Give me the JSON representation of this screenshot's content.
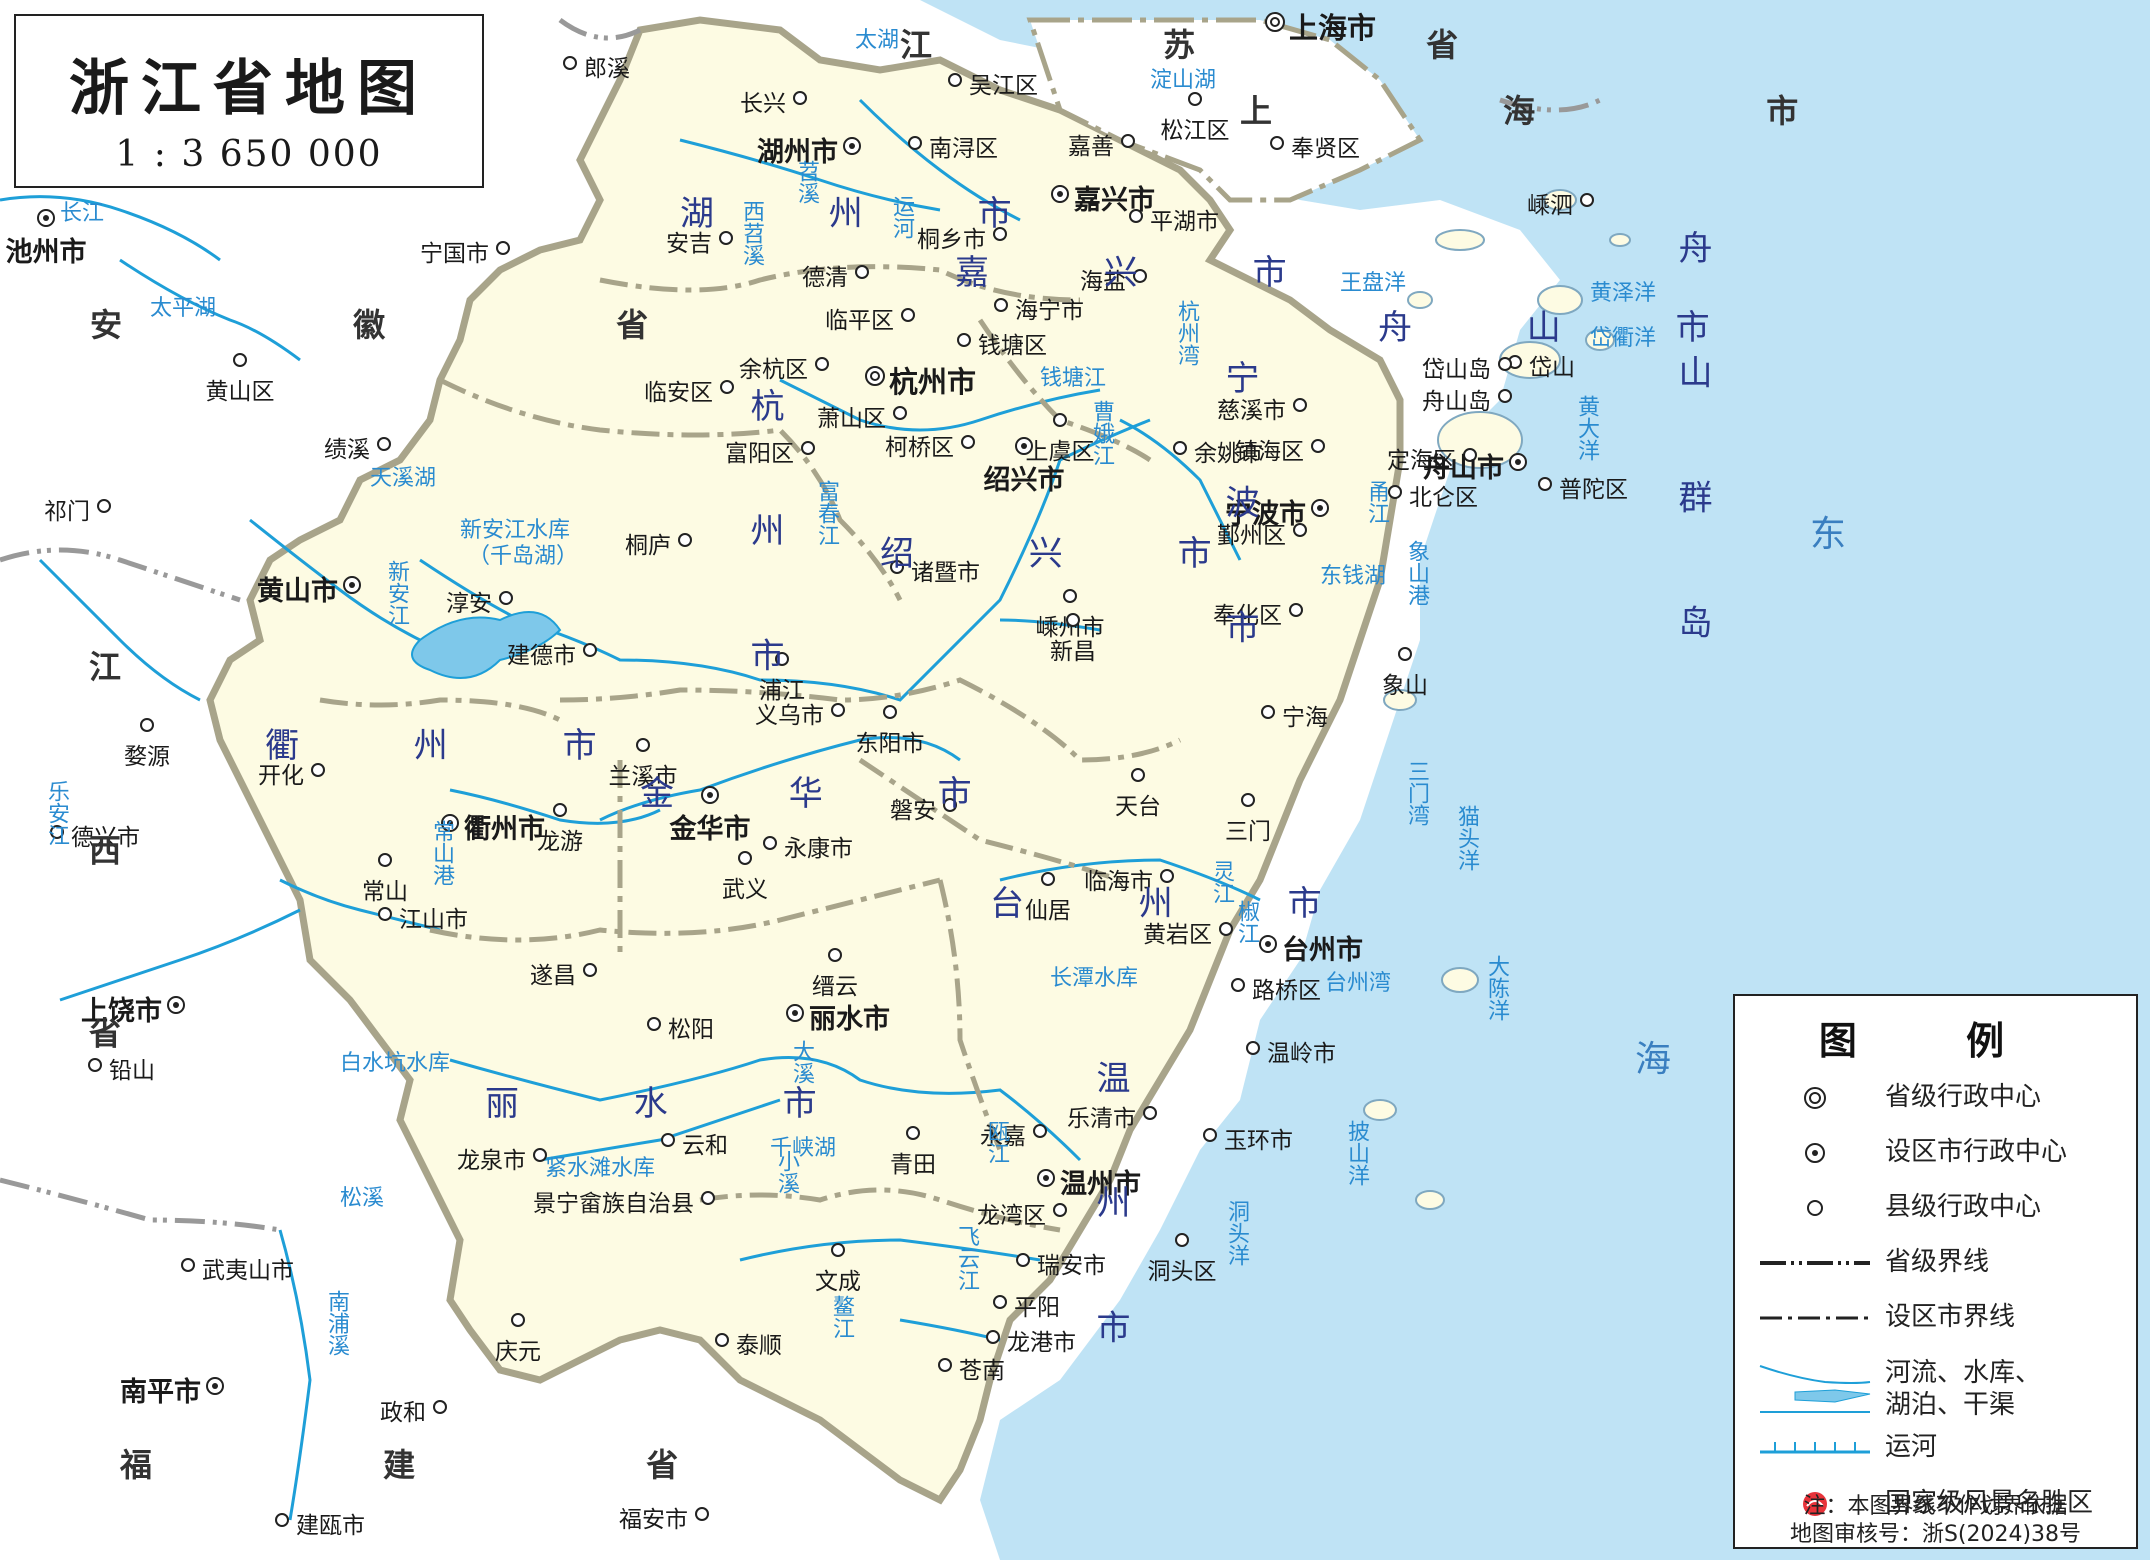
{
  "title": "浙江省地图",
  "scale": "1 : 3 650 000",
  "colors": {
    "sea": "#bfe3f5",
    "land_zj": "#fdfbe3",
    "land_other": "#ffffff",
    "river": "#1e9fd8",
    "label_blue": "#2a8bd0",
    "label_sea": "#3a7fc0",
    "region_label": "#2b3a8c",
    "boundary": "#9a9a80",
    "text": "#1a1a1a"
  },
  "sea_labels": [
    "东",
    "海"
  ],
  "province_labels": {
    "jiangsu": "江 苏 省",
    "anhui": "安 徽 省",
    "jiangxi": "江 西 省",
    "fujian": "福 建 省",
    "shanghai": "上 海 市"
  },
  "city_region_labels": {
    "huzhou": "湖 州 市",
    "jiaxing": "嘉 兴 市",
    "hangzhou": "杭 州 市",
    "shaoxing": "绍 兴 市",
    "ningbo": "宁 波 市",
    "zhoushan": "舟 山 市",
    "quzhou": "衢 州 市",
    "jinhua": "金 华 市",
    "taizhou": "台 州 市",
    "lishui": "丽 水 市",
    "wenzhou": "温 州 市",
    "zhoushan_islands": "舟 山 群 岛"
  },
  "water_labels": [
    "太湖",
    "淀山湖",
    "长江",
    "太平湖",
    "天溪湖",
    "新安江水库",
    "（千岛湖）",
    "钱塘江",
    "曹娥江",
    "杭州湾",
    "王盘洋",
    "黄泽洋",
    "岱衢洋",
    "黄大洋",
    "甬江",
    "东钱湖",
    "象山港",
    "三门湾",
    "猫头洋",
    "大陈洋",
    "台州湾",
    "灵江",
    "椒江",
    "长潭水库",
    "紧水滩水库",
    "千峡湖",
    "白水坑水库",
    "瓯江",
    "飞云江",
    "鳌江",
    "洞头洋",
    "披山洋",
    "乐安江",
    "富春江",
    "新安江",
    "常山港",
    "大溪",
    "小溪",
    "苕溪",
    "西苕溪",
    "运河",
    "松溪",
    "南浦溪"
  ],
  "places": {
    "provincial": [
      {
        "name": "上海市"
      },
      {
        "name": "杭州市"
      }
    ],
    "prefecture": [
      {
        "name": "湖州市"
      },
      {
        "name": "嘉兴市"
      },
      {
        "name": "绍兴市"
      },
      {
        "name": "宁波市"
      },
      {
        "name": "舟山市"
      },
      {
        "name": "衢州市"
      },
      {
        "name": "金华市"
      },
      {
        "name": "台州市"
      },
      {
        "name": "丽水市"
      },
      {
        "name": "温州市"
      },
      {
        "name": "池州市"
      },
      {
        "name": "黄山市"
      },
      {
        "name": "上饶市"
      },
      {
        "name": "南平市"
      }
    ],
    "county": [
      {
        "name": "郎溪"
      },
      {
        "name": "长兴"
      },
      {
        "name": "吴江区"
      },
      {
        "name": "松江区"
      },
      {
        "name": "奉贤区"
      },
      {
        "name": "南浔区"
      },
      {
        "name": "嘉善"
      },
      {
        "name": "嵊泗"
      },
      {
        "name": "宁国市"
      },
      {
        "name": "安吉"
      },
      {
        "name": "德清"
      },
      {
        "name": "桐乡市"
      },
      {
        "name": "平湖市"
      },
      {
        "name": "海盐"
      },
      {
        "name": "海宁市"
      },
      {
        "name": "临平区"
      },
      {
        "name": "钱塘区"
      },
      {
        "name": "余杭区"
      },
      {
        "name": "临安区"
      },
      {
        "name": "萧山区"
      },
      {
        "name": "岱山"
      },
      {
        "name": "岱山岛"
      },
      {
        "name": "舟山岛"
      },
      {
        "name": "黄山区"
      },
      {
        "name": "绩溪"
      },
      {
        "name": "富阳区"
      },
      {
        "name": "柯桥区"
      },
      {
        "name": "上虞区"
      },
      {
        "name": "余姚市"
      },
      {
        "name": "镇海区"
      },
      {
        "name": "慈溪市"
      },
      {
        "name": "定海区"
      },
      {
        "name": "普陀区"
      },
      {
        "name": "北仑区"
      },
      {
        "name": "祁门"
      },
      {
        "name": "鄞州区"
      },
      {
        "name": "桐庐"
      },
      {
        "name": "诸暨市"
      },
      {
        "name": "嵊州市"
      },
      {
        "name": "新昌"
      },
      {
        "name": "奉化区"
      },
      {
        "name": "淳安"
      },
      {
        "name": "建德市"
      },
      {
        "name": "象山"
      },
      {
        "name": "婺源"
      },
      {
        "name": "浦江"
      },
      {
        "name": "义乌市"
      },
      {
        "name": "兰溪市"
      },
      {
        "name": "东阳市"
      },
      {
        "name": "宁海"
      },
      {
        "name": "开化"
      },
      {
        "name": "三门"
      },
      {
        "name": "天台"
      },
      {
        "name": "磐安"
      },
      {
        "name": "德兴市"
      },
      {
        "name": "龙游"
      },
      {
        "name": "常山"
      },
      {
        "name": "永康市"
      },
      {
        "name": "武义"
      },
      {
        "name": "临海市"
      },
      {
        "name": "仙居"
      },
      {
        "name": "江山市"
      },
      {
        "name": "黄岩区"
      },
      {
        "name": "遂昌"
      },
      {
        "name": "缙云"
      },
      {
        "name": "路桥区"
      },
      {
        "name": "松阳"
      },
      {
        "name": "温岭市"
      },
      {
        "name": "铅山"
      },
      {
        "name": "青田"
      },
      {
        "name": "乐清市"
      },
      {
        "name": "龙泉市"
      },
      {
        "name": "云和"
      },
      {
        "name": "永嘉"
      },
      {
        "name": "玉环市"
      },
      {
        "name": "景宁畲族自治县"
      },
      {
        "name": "龙湾区"
      },
      {
        "name": "文成"
      },
      {
        "name": "瑞安市"
      },
      {
        "name": "洞头区"
      },
      {
        "name": "武夷山市"
      },
      {
        "name": "庆元"
      },
      {
        "name": "平阳"
      },
      {
        "name": "泰顺"
      },
      {
        "name": "龙港市"
      },
      {
        "name": "苍南"
      },
      {
        "name": "政和"
      },
      {
        "name": "福安市"
      },
      {
        "name": "建瓯市"
      }
    ]
  },
  "legend": {
    "title": "图 例",
    "items": [
      {
        "label": "省级行政中心"
      },
      {
        "label": "设区市行政中心"
      },
      {
        "label": "县级行政中心"
      },
      {
        "label": "省级界线"
      },
      {
        "label": "设区市界线"
      },
      {
        "label": "河流、水库、"
      },
      {
        "label": "湖泊、干渠"
      },
      {
        "label": "运河"
      },
      {
        "label": "国家级风景名胜区"
      }
    ],
    "note1": "注：本图界线不作划界依据",
    "note2": "地图审核号：浙S(2024)38号"
  }
}
